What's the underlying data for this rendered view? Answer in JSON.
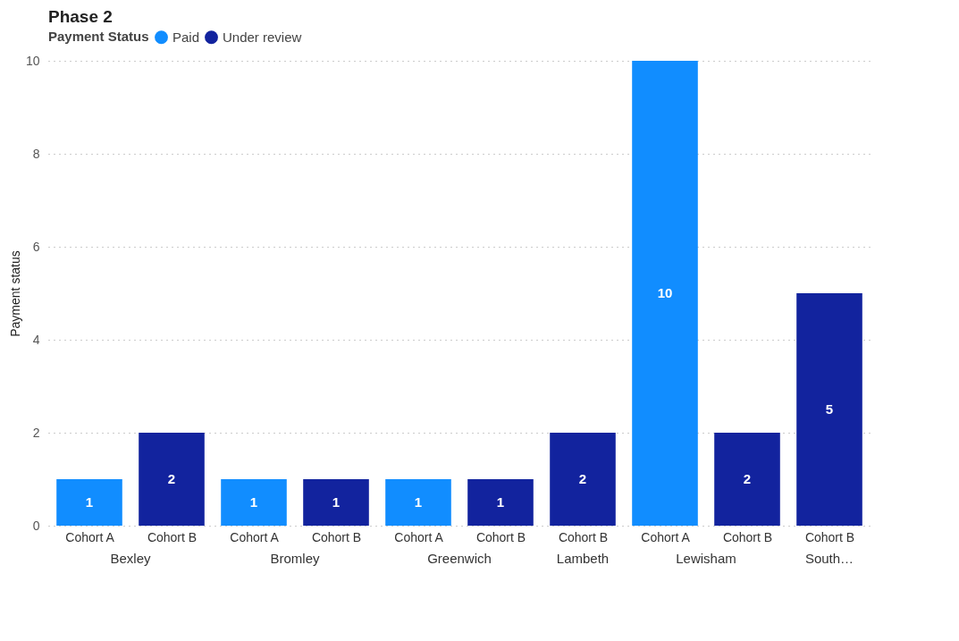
{
  "chart_data": {
    "type": "bar",
    "title": "Phase 2",
    "ylabel": "Payment status",
    "legend_title": "Payment Status",
    "legend": "top",
    "grid": "y",
    "data_labels": true,
    "categories": [
      "Cohort A",
      "Cohort B",
      "Cohort A",
      "Cohort B",
      "Cohort A",
      "Cohort B",
      "Cohort B",
      "Cohort A",
      "Cohort B",
      "Cohort B"
    ],
    "annotations": [
      "Bexley",
      "Bromley",
      "Greenwich",
      "Lambeth",
      "Lewisham",
      "South…"
    ],
    "series": [
      {
        "name": "Paid",
        "color": "#118dff",
        "values": [
          1,
          null,
          1,
          null,
          1,
          null,
          null,
          10,
          null,
          null
        ]
      },
      {
        "name": "Under review",
        "color": "#12239e",
        "values": [
          null,
          2,
          null,
          1,
          null,
          1,
          2,
          null,
          2,
          5
        ]
      }
    ],
    "ylim": [
      0,
      10
    ],
    "yticks": [
      0,
      2,
      4,
      6,
      8,
      10
    ]
  }
}
